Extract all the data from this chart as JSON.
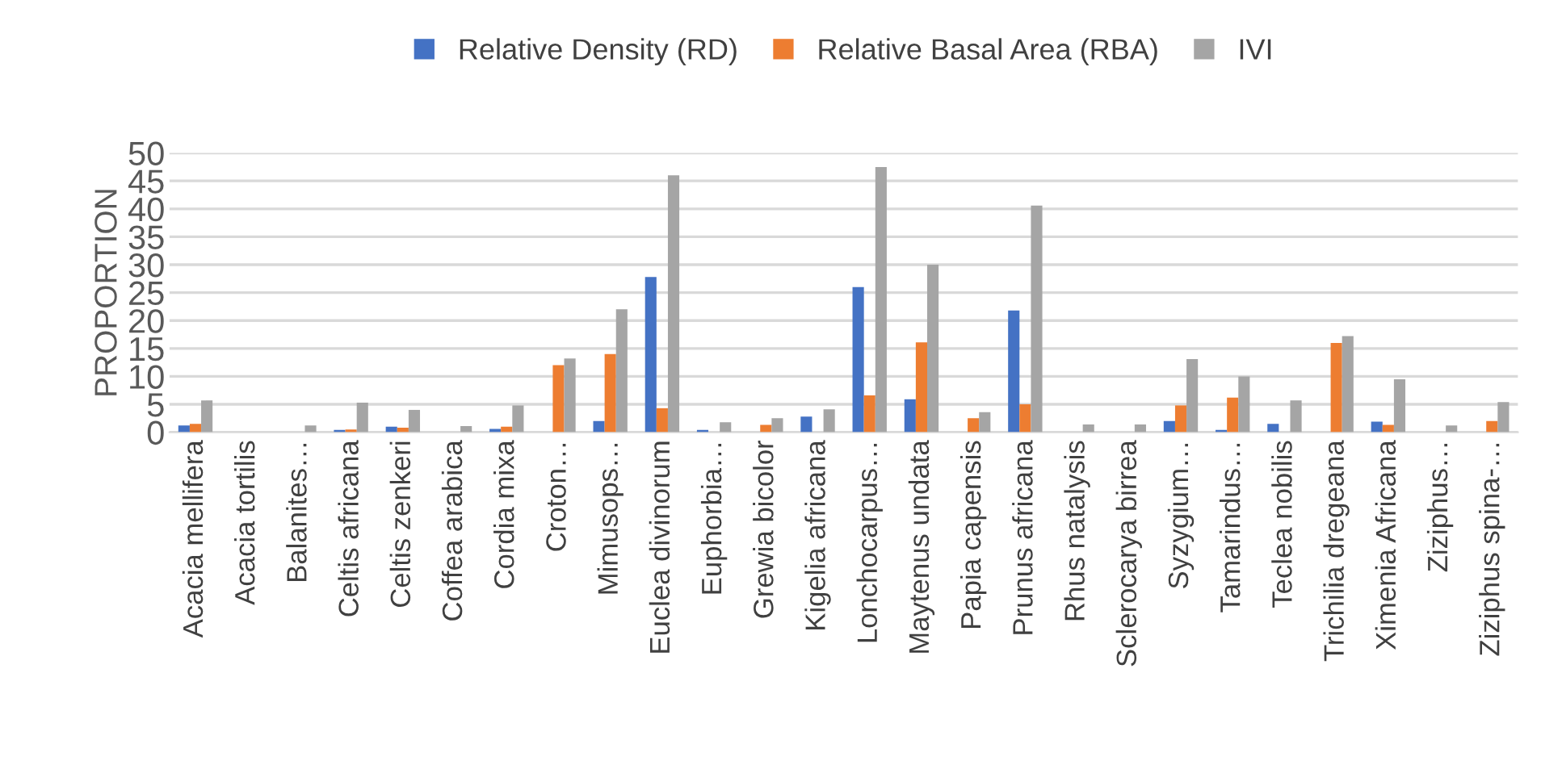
{
  "chart_data": {
    "type": "bar",
    "ylabel": "PROPORTION",
    "categories": [
      "Acacia mellifera",
      "Acacia tortilis",
      "Balanites…",
      "Celtis africana",
      "Celtis zenkeri",
      "Coffea arabica",
      "Cordia mixa",
      "Croton…",
      "Mimusops…",
      "Euclea divinorum",
      "Euphorbia…",
      "Grewia bicolor",
      "Kigelia africana",
      "Lonchocarpus…",
      "Maytenus undata",
      "Papia capensis",
      "Prunus africana",
      "Rhus natalysis",
      "Sclerocarya birrea",
      "Syzygium…",
      "Tamarindus…",
      "Teclea nobilis",
      "Trichilia dregeana",
      "Ximenia Africana",
      "Ziziphus…",
      "Ziziphus spina-…"
    ],
    "series": [
      {
        "name": "Relative Density (RD)",
        "color": "#4472c4",
        "values": [
          1.2,
          0,
          0,
          0.4,
          1,
          0,
          0.6,
          0,
          2,
          27.8,
          0.4,
          0,
          2.8,
          26,
          5.9,
          0,
          21.8,
          0,
          0,
          2,
          0.4,
          1.5,
          0,
          1.9,
          0,
          null
        ]
      },
      {
        "name": "Relative Basal Area (RBA)",
        "color": "#ed7d31",
        "values": [
          1.5,
          0,
          null,
          0.5,
          0.8,
          0,
          1,
          12,
          14,
          4.3,
          0,
          1.3,
          0,
          6.6,
          16.1,
          2.5,
          5,
          null,
          null,
          4.8,
          6.2,
          0,
          16,
          1.3,
          0,
          2
        ]
      },
      {
        "name": "IVI",
        "color": "#a5a5a5",
        "values": [
          5.7,
          0,
          1.2,
          5.3,
          4,
          1.1,
          4.8,
          13.2,
          22,
          46,
          1.8,
          2.5,
          4.1,
          47.5,
          30,
          3.6,
          40.6,
          1.4,
          1.4,
          13.1,
          10,
          5.7,
          17.2,
          9.5,
          1.2,
          5.4
        ]
      }
    ],
    "ylim": [
      0,
      50
    ],
    "yticks": [
      0,
      5,
      10,
      15,
      20,
      25,
      30,
      35,
      40,
      45,
      50
    ],
    "grid": "y",
    "legend": "top"
  }
}
